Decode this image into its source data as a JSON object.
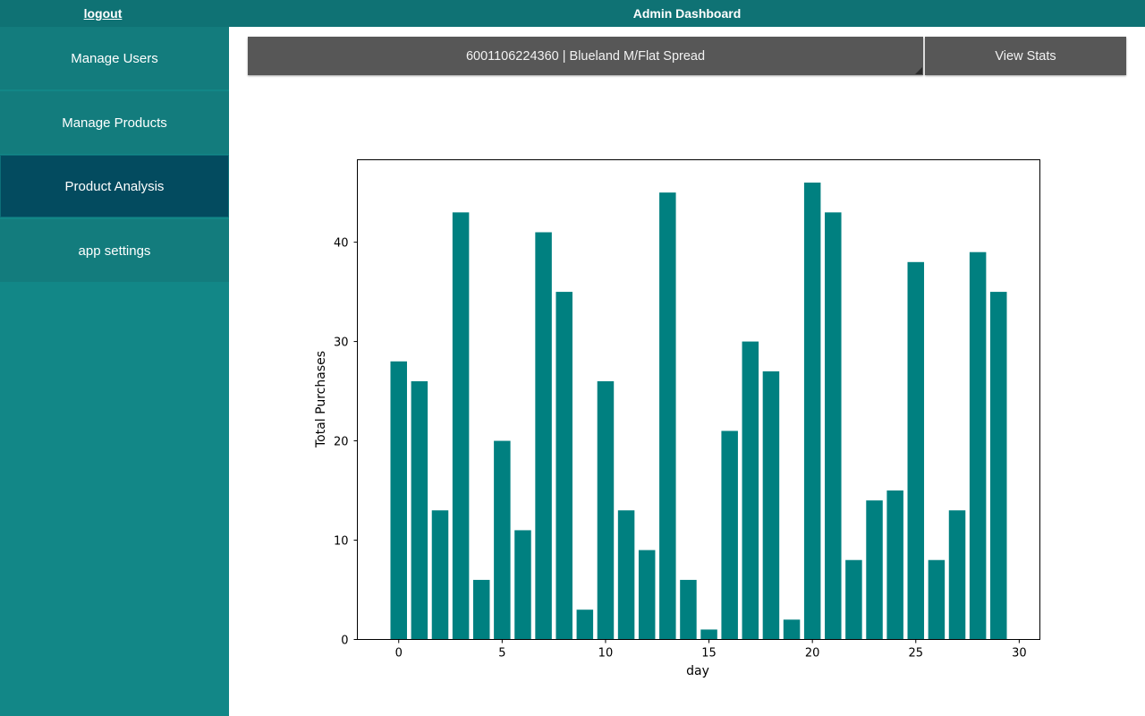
{
  "header": {
    "logout_label": "logout",
    "title": "Admin Dashboard"
  },
  "sidebar": {
    "items": [
      {
        "label": "Manage Users",
        "active": false
      },
      {
        "label": "Manage Products",
        "active": false
      },
      {
        "label": "Product Analysis",
        "active": true
      },
      {
        "label": "app settings",
        "active": false
      }
    ]
  },
  "main": {
    "product_select_value": "6001106224360 | Blueland M/Flat Spread",
    "view_stats_label": "View Stats"
  },
  "colors": {
    "header_bg": "#0f7274",
    "sidebar_bg": "#128787",
    "sidebar_active": "#034b5f",
    "bar_color": "#008080",
    "control_bg": "#575757"
  },
  "chart_data": {
    "type": "bar",
    "title": "",
    "xlabel": "day",
    "ylabel": "Total Purchases",
    "x": [
      0,
      1,
      2,
      3,
      4,
      5,
      6,
      7,
      8,
      9,
      10,
      11,
      12,
      13,
      14,
      15,
      16,
      17,
      18,
      19,
      20,
      21,
      22,
      23,
      24,
      25,
      26,
      27,
      28,
      29
    ],
    "values": [
      28,
      26,
      13,
      43,
      6,
      20,
      11,
      41,
      35,
      3,
      26,
      13,
      9,
      45,
      6,
      1,
      21,
      30,
      27,
      2,
      46,
      43,
      8,
      14,
      15,
      38,
      8,
      13,
      39,
      35
    ],
    "xlim": [
      -2,
      31
    ],
    "ylim": [
      0,
      48.3
    ],
    "xticks": [
      0,
      5,
      10,
      15,
      20,
      25,
      30
    ],
    "yticks": [
      0,
      10,
      20,
      30,
      40
    ],
    "grid": false,
    "legend": "none"
  }
}
